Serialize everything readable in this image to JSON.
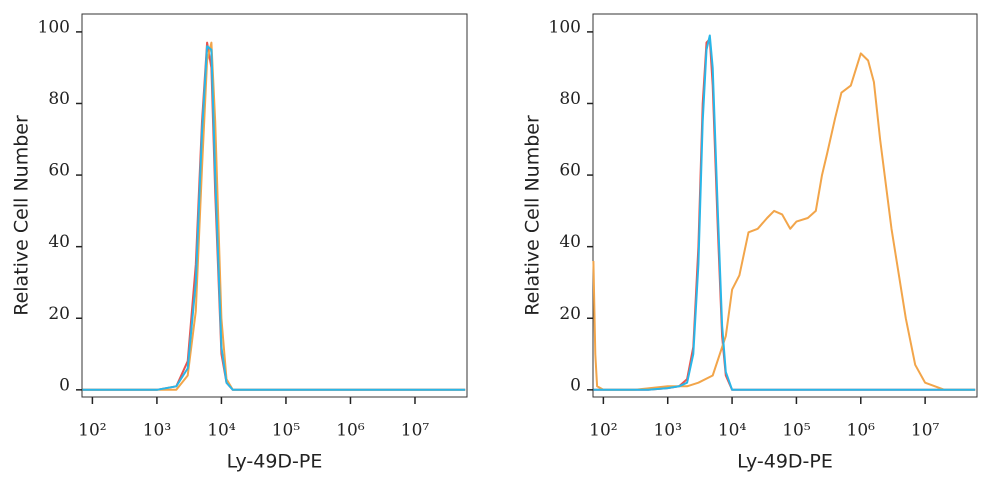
{
  "chart_data": [
    {
      "type": "line",
      "xlabel": "Ly-49D-PE",
      "ylabel": "Relative Cell Number",
      "xscale": "log",
      "xlim": [
        69,
        64000000
      ],
      "ylim": [
        -2,
        105
      ],
      "xticks": [
        {
          "value": 100,
          "label": "10²"
        },
        {
          "value": 1000,
          "label": "10³"
        },
        {
          "value": 10000,
          "label": "10⁴"
        },
        {
          "value": 100000,
          "label": "10⁵"
        },
        {
          "value": 1000000,
          "label": "10⁶"
        },
        {
          "value": 10000000,
          "label": "10⁷"
        }
      ],
      "yticks": [
        0,
        20,
        40,
        60,
        80,
        100
      ],
      "series": [
        {
          "color": "#e8544e",
          "x": [
            70,
            1000,
            2000,
            3000,
            4000,
            5000,
            6000,
            7000,
            8000,
            10000,
            12000,
            15000,
            100000,
            10000000,
            60000000
          ],
          "values": [
            0,
            0,
            1,
            8,
            35,
            75,
            97,
            90,
            55,
            10,
            2,
            0,
            0,
            0,
            0
          ]
        },
        {
          "color": "#f2a54a",
          "x": [
            70,
            1000,
            2000,
            3000,
            4000,
            5000,
            6000,
            7000,
            8000,
            10000,
            12000,
            15000,
            100000,
            10000000,
            60000000
          ],
          "values": [
            0,
            0,
            0,
            4,
            22,
            62,
            92,
            97,
            75,
            20,
            3,
            0,
            0,
            0,
            0
          ]
        },
        {
          "color": "#29b6e8",
          "x": [
            70,
            1000,
            2000,
            3000,
            4000,
            5000,
            6000,
            7000,
            8000,
            10000,
            12000,
            15000,
            100000,
            10000000,
            60000000
          ],
          "values": [
            0,
            0,
            1,
            6,
            30,
            72,
            96,
            95,
            60,
            12,
            2,
            0,
            0,
            0,
            0
          ]
        }
      ]
    },
    {
      "type": "line",
      "xlabel": "Ly-49D-PE",
      "ylabel": "Relative Cell Number",
      "xscale": "log",
      "xlim": [
        69,
        64000000
      ],
      "ylim": [
        -2,
        105
      ],
      "xticks": [
        {
          "value": 100,
          "label": "10²"
        },
        {
          "value": 1000,
          "label": "10³"
        },
        {
          "value": 10000,
          "label": "10⁴"
        },
        {
          "value": 100000,
          "label": "10⁵"
        },
        {
          "value": 1000000,
          "label": "10⁶"
        },
        {
          "value": 10000000,
          "label": "10⁷"
        }
      ],
      "yticks": [
        0,
        20,
        40,
        60,
        80,
        100
      ],
      "series": [
        {
          "color": "#e8544e",
          "x": [
            70,
            500,
            1000,
            1500,
            2000,
            2500,
            3000,
            3500,
            4000,
            4500,
            5000,
            6000,
            7000,
            8000,
            10000,
            100000,
            60000000
          ],
          "values": [
            0,
            0,
            0.5,
            1,
            3,
            12,
            40,
            80,
            97,
            98,
            85,
            45,
            15,
            4,
            0,
            0,
            0
          ]
        },
        {
          "color": "#f2a54a",
          "x": [
            70,
            75,
            80,
            100,
            300,
            1000,
            2000,
            3000,
            5000,
            8000,
            10000,
            13000,
            18000,
            25000,
            35000,
            45000,
            60000,
            80000,
            100000,
            150000,
            200000,
            250000,
            300000,
            400000,
            500000,
            700000,
            1000000,
            1300000,
            1600000,
            2000000,
            3000000,
            5000000,
            7000000,
            10000000,
            20000000,
            60000000
          ],
          "values": [
            36,
            10,
            1,
            0,
            0,
            1,
            1,
            2,
            4,
            15,
            28,
            32,
            44,
            45,
            48,
            50,
            49,
            45,
            47,
            48,
            50,
            60,
            66,
            76,
            83,
            85,
            94,
            92,
            86,
            70,
            45,
            20,
            7,
            2,
            0,
            0
          ]
        },
        {
          "color": "#29b6e8",
          "x": [
            70,
            500,
            1000,
            1500,
            2000,
            2500,
            3000,
            3500,
            4000,
            4500,
            5000,
            6000,
            7000,
            8000,
            10000,
            100000,
            60000000
          ],
          "values": [
            0,
            0,
            0.5,
            1,
            2,
            10,
            35,
            75,
            95,
            99,
            90,
            50,
            18,
            5,
            0,
            0,
            0
          ]
        }
      ]
    }
  ]
}
